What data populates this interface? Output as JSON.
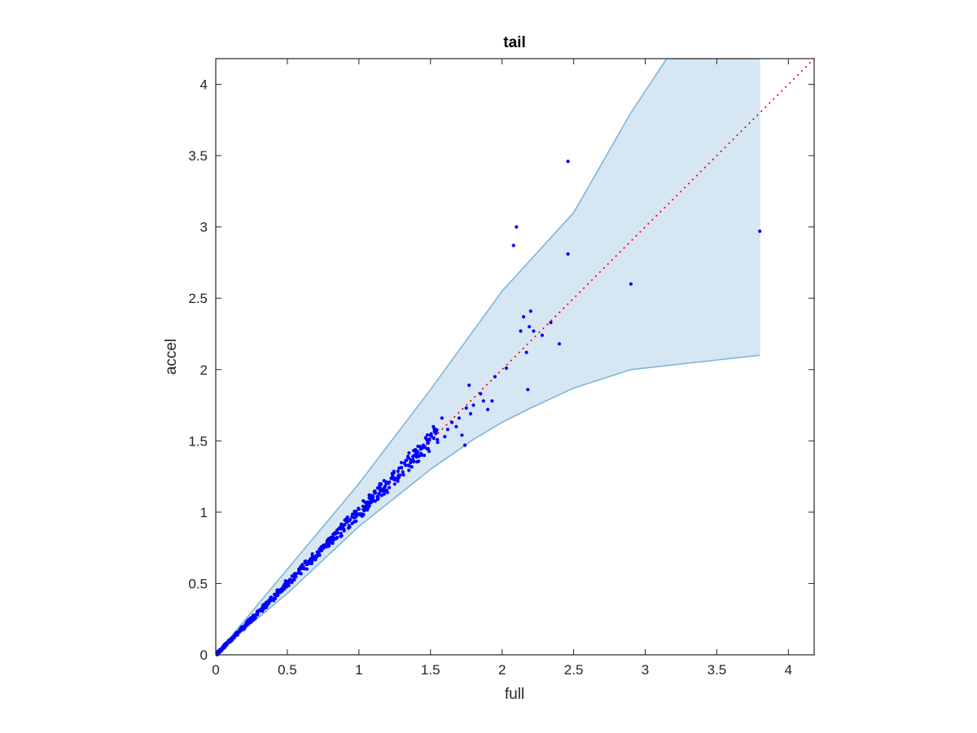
{
  "chart_data": {
    "type": "scatter",
    "title": "tail",
    "xlabel": "full",
    "ylabel": "accel",
    "xlim": [
      0,
      4.18
    ],
    "ylim": [
      0,
      4.18
    ],
    "xticks": [
      0,
      0.5,
      1,
      1.5,
      2,
      2.5,
      3,
      3.5,
      4
    ],
    "yticks": [
      0,
      0.5,
      1,
      1.5,
      2,
      2.5,
      3,
      3.5,
      4
    ],
    "xtick_labels": [
      "0",
      "0.5",
      "1",
      "1.5",
      "2",
      "2.5",
      "3",
      "3.5",
      "4"
    ],
    "ytick_labels": [
      "0",
      "0.5",
      "1",
      "1.5",
      "2",
      "2.5",
      "3",
      "3.5",
      "4"
    ],
    "grid": false,
    "box": true,
    "reference_line": {
      "style": "dotted",
      "color": "#ff0000",
      "from": [
        0,
        0
      ],
      "to": [
        4.18,
        4.18
      ]
    },
    "band": {
      "color": "#d6e7f3",
      "edge_color": "#7fb6da",
      "upper": [
        [
          0,
          0
        ],
        [
          0.2,
          0.24
        ],
        [
          0.5,
          0.6
        ],
        [
          1,
          1.2
        ],
        [
          1.5,
          1.86
        ],
        [
          2,
          2.55
        ],
        [
          2.5,
          3.1
        ],
        [
          2.9,
          3.8
        ],
        [
          3.15,
          4.18
        ],
        [
          3.8,
          4.18
        ]
      ],
      "lower": [
        [
          0,
          0
        ],
        [
          0.2,
          0.18
        ],
        [
          0.5,
          0.43
        ],
        [
          1,
          0.9
        ],
        [
          1.5,
          1.3
        ],
        [
          1.8,
          1.51
        ],
        [
          2,
          1.63
        ],
        [
          2.2,
          1.73
        ],
        [
          2.5,
          1.87
        ],
        [
          2.9,
          2.0
        ],
        [
          3.8,
          2.1
        ]
      ]
    },
    "points": {
      "color": "#0000ff",
      "bulk_trend": {
        "x_min": 0.01,
        "x_max": 1.55,
        "count": 600,
        "spread": 0.045
      },
      "scattered": [
        [
          1.45,
          1.47
        ],
        [
          1.5,
          1.54
        ],
        [
          1.52,
          1.6
        ],
        [
          1.55,
          1.49
        ],
        [
          1.58,
          1.66
        ],
        [
          1.6,
          1.53
        ],
        [
          1.62,
          1.58
        ],
        [
          1.65,
          1.63
        ],
        [
          1.68,
          1.6
        ],
        [
          1.7,
          1.66
        ],
        [
          1.72,
          1.54
        ],
        [
          1.74,
          1.47
        ],
        [
          1.75,
          1.73
        ],
        [
          1.77,
          1.89
        ],
        [
          1.78,
          1.69
        ],
        [
          1.8,
          1.75
        ],
        [
          1.85,
          1.83
        ],
        [
          1.87,
          1.78
        ],
        [
          1.9,
          1.72
        ],
        [
          1.93,
          1.78
        ],
        [
          1.95,
          1.95
        ],
        [
          2.03,
          2.01
        ],
        [
          2.08,
          2.87
        ],
        [
          2.1,
          3.0
        ],
        [
          2.13,
          2.27
        ],
        [
          2.15,
          2.37
        ],
        [
          2.17,
          2.12
        ],
        [
          2.18,
          1.86
        ],
        [
          2.19,
          2.3
        ],
        [
          2.2,
          2.41
        ],
        [
          2.22,
          2.27
        ],
        [
          2.28,
          2.24
        ],
        [
          2.34,
          2.33
        ],
        [
          2.4,
          2.18
        ],
        [
          2.46,
          3.46
        ],
        [
          2.46,
          2.81
        ],
        [
          2.9,
          2.6
        ],
        [
          3.8,
          2.97
        ]
      ]
    }
  }
}
